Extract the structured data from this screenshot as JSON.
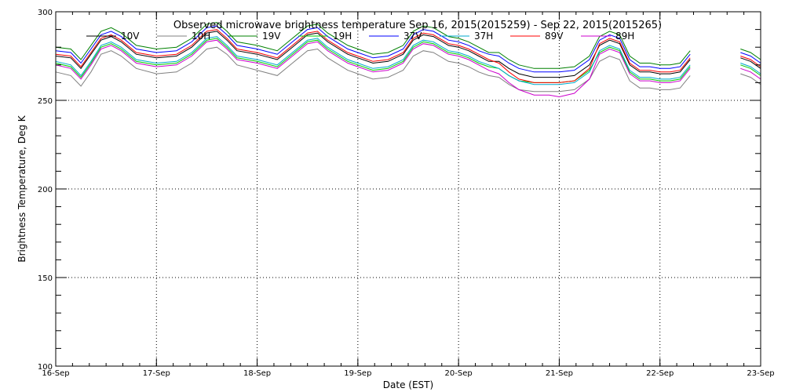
{
  "chart_data": {
    "type": "line",
    "title": "Observed microwave brightness temperature Sep 16, 2015(2015259) - Sep 22, 2015(2015265)",
    "xlabel": "Date (EST)",
    "ylabel": "Brightness Temperature, Deg K",
    "xlim": [
      0,
      7
    ],
    "ylim": [
      100,
      300
    ],
    "x_ticks": [
      {
        "x": 0,
        "label": "16-Sep"
      },
      {
        "x": 1,
        "label": "17-Sep"
      },
      {
        "x": 2,
        "label": "18-Sep"
      },
      {
        "x": 3,
        "label": "19-Sep"
      },
      {
        "x": 4,
        "label": "20-Sep"
      },
      {
        "x": 5,
        "label": "21-Sep"
      },
      {
        "x": 6,
        "label": "22-Sep"
      },
      {
        "x": 7,
        "label": "23-Sep"
      }
    ],
    "y_ticks": [
      {
        "y": 100,
        "label": "100"
      },
      {
        "y": 150,
        "label": "150"
      },
      {
        "y": 200,
        "label": "200"
      },
      {
        "y": 250,
        "label": "250"
      },
      {
        "y": 300,
        "label": "300"
      }
    ],
    "grid": "dotted",
    "legend_position": "top",
    "x": [
      0.0,
      0.15,
      0.25,
      0.35,
      0.45,
      0.55,
      0.65,
      0.8,
      1.0,
      1.2,
      1.35,
      1.5,
      1.6,
      1.7,
      1.8,
      2.0,
      2.2,
      2.35,
      2.5,
      2.6,
      2.7,
      2.9,
      3.0,
      3.15,
      3.3,
      3.45,
      3.55,
      3.65,
      3.75,
      3.9,
      4.0,
      4.1,
      4.2,
      4.3,
      4.4,
      4.5,
      4.6,
      4.75,
      4.9,
      5.0,
      5.15,
      5.3,
      5.4,
      5.5,
      5.6,
      5.7,
      5.8,
      5.9,
      6.0,
      6.1,
      6.2,
      6.3,
      6.4,
      6.5,
      6.7,
      6.8,
      6.9,
      7.0
    ],
    "series": [
      {
        "name": "10V",
        "color": "#000000",
        "values": [
          275,
          274,
          268,
          276,
          284,
          286,
          283,
          276,
          274,
          275,
          280,
          288,
          289,
          284,
          278,
          276,
          273,
          280,
          287,
          288,
          283,
          276,
          274,
          271,
          272,
          276,
          284,
          287,
          286,
          281,
          280,
          278,
          275,
          272,
          272,
          268,
          265,
          263,
          263,
          263,
          264,
          270,
          281,
          284,
          282,
          270,
          266,
          266,
          265,
          265,
          266,
          273,
          null,
          null,
          null,
          274,
          272,
          268
        ]
      },
      {
        "name": "10H",
        "color": "#808080",
        "values": [
          266,
          264,
          258,
          266,
          276,
          278,
          275,
          268,
          265,
          266,
          271,
          279,
          280,
          276,
          270,
          267,
          264,
          271,
          278,
          279,
          274,
          267,
          265,
          262,
          263,
          267,
          275,
          278,
          277,
          272,
          271,
          269,
          266,
          264,
          263,
          259,
          256,
          255,
          255,
          255,
          256,
          262,
          272,
          275,
          273,
          261,
          257,
          257,
          256,
          256,
          257,
          264,
          null,
          null,
          null,
          265,
          263,
          259
        ]
      },
      {
        "name": "19V",
        "color": "#008000",
        "values": [
          280,
          279,
          273,
          281,
          289,
          291,
          288,
          281,
          279,
          280,
          285,
          293,
          294,
          289,
          283,
          281,
          278,
          285,
          292,
          293,
          288,
          281,
          279,
          276,
          277,
          281,
          289,
          292,
          291,
          286,
          285,
          283,
          280,
          277,
          277,
          273,
          270,
          268,
          268,
          268,
          269,
          275,
          286,
          289,
          287,
          275,
          271,
          271,
          270,
          270,
          271,
          278,
          null,
          null,
          null,
          279,
          277,
          273
        ]
      },
      {
        "name": "19H",
        "color": "#00cc00",
        "values": [
          271,
          269,
          263,
          271,
          280,
          282,
          279,
          272,
          270,
          271,
          276,
          284,
          285,
          280,
          274,
          272,
          269,
          276,
          283,
          284,
          279,
          272,
          270,
          267,
          268,
          272,
          280,
          283,
          282,
          277,
          276,
          274,
          271,
          269,
          268,
          264,
          261,
          260,
          260,
          260,
          261,
          267,
          277,
          280,
          278,
          266,
          262,
          262,
          261,
          261,
          262,
          269,
          null,
          null,
          null,
          270,
          268,
          264
        ]
      },
      {
        "name": "37V",
        "color": "#0000ff",
        "values": [
          278,
          277,
          271,
          279,
          287,
          289,
          286,
          279,
          277,
          278,
          283,
          291,
          292,
          287,
          281,
          279,
          276,
          283,
          290,
          291,
          286,
          279,
          277,
          274,
          275,
          279,
          287,
          290,
          289,
          284,
          283,
          281,
          278,
          276,
          275,
          271,
          268,
          266,
          266,
          266,
          267,
          273,
          284,
          287,
          285,
          273,
          269,
          269,
          268,
          268,
          269,
          276,
          null,
          null,
          null,
          277,
          275,
          271
        ]
      },
      {
        "name": "37H",
        "color": "#00aacc",
        "values": [
          272,
          270,
          264,
          272,
          281,
          283,
          280,
          273,
          271,
          272,
          277,
          285,
          286,
          281,
          275,
          273,
          270,
          277,
          284,
          285,
          280,
          273,
          271,
          268,
          269,
          273,
          281,
          284,
          283,
          278,
          277,
          275,
          272,
          270,
          268,
          264,
          261,
          259,
          259,
          259,
          260,
          266,
          278,
          281,
          279,
          267,
          263,
          263,
          262,
          262,
          263,
          270,
          null,
          null,
          null,
          271,
          269,
          265
        ]
      },
      {
        "name": "89V",
        "color": "#ff0000",
        "values": [
          276,
          275,
          269,
          277,
          285,
          287,
          284,
          277,
          275,
          276,
          281,
          289,
          290,
          285,
          279,
          277,
          274,
          281,
          288,
          289,
          284,
          277,
          275,
          272,
          273,
          277,
          285,
          288,
          287,
          282,
          281,
          279,
          276,
          273,
          271,
          266,
          262,
          260,
          260,
          260,
          261,
          268,
          282,
          285,
          283,
          271,
          267,
          267,
          266,
          266,
          267,
          274,
          null,
          null,
          null,
          275,
          273,
          269
        ]
      },
      {
        "name": "89H",
        "color": "#cc00cc",
        "values": [
          270,
          268,
          262,
          270,
          279,
          281,
          278,
          271,
          269,
          270,
          275,
          283,
          284,
          279,
          273,
          271,
          268,
          275,
          282,
          283,
          278,
          271,
          269,
          266,
          267,
          271,
          279,
          282,
          281,
          276,
          275,
          273,
          270,
          267,
          265,
          260,
          256,
          253,
          253,
          252,
          254,
          262,
          276,
          279,
          277,
          265,
          261,
          261,
          260,
          260,
          261,
          268,
          null,
          null,
          null,
          268,
          266,
          262
        ]
      }
    ]
  }
}
